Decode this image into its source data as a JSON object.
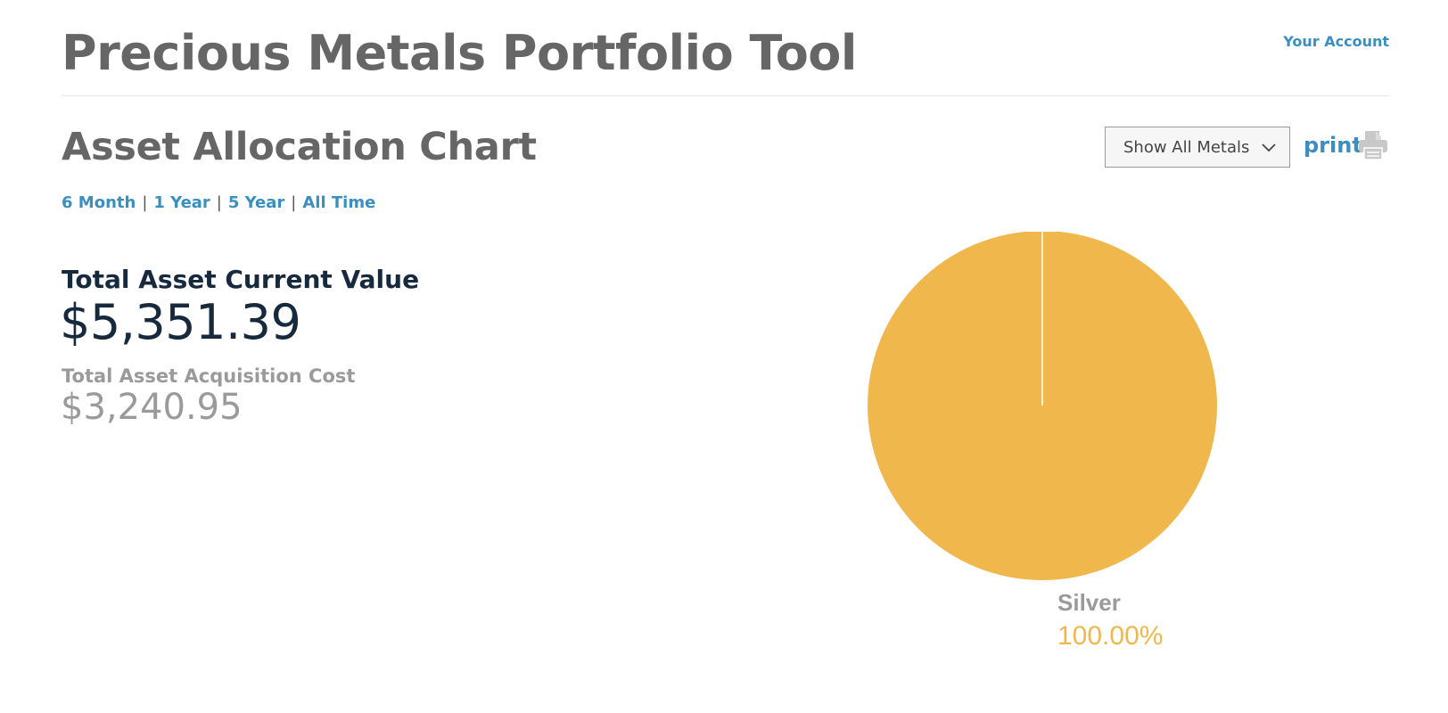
{
  "header": {
    "title": "Precious Metals Portfolio Tool",
    "account_link": "Your Account"
  },
  "section": {
    "title": "Asset Allocation Chart"
  },
  "filter": {
    "selected": "Show All Metals",
    "icon": "chevron-down-icon"
  },
  "print": {
    "label": "print",
    "icon": "printer-icon"
  },
  "time_ranges": [
    "6 Month",
    "1 Year",
    "5 Year",
    "All Time"
  ],
  "separator": "|",
  "summary": {
    "current_value_label": "Total Asset Current Value",
    "current_value": "$5,351.39",
    "acquisition_cost_label": "Total Asset Acquisition Cost",
    "acquisition_cost": "$3,240.95"
  },
  "colors": {
    "link": "#3a8fc0",
    "title": "#666666",
    "primary_value": "#17293d",
    "muted": "#9a9a9a",
    "silver_slice": "#f0b84c"
  },
  "chart_data": {
    "type": "pie",
    "slices": [
      {
        "label": "Silver",
        "value": 100.0,
        "display": "100.00%",
        "color": "#f0b84c"
      }
    ]
  }
}
